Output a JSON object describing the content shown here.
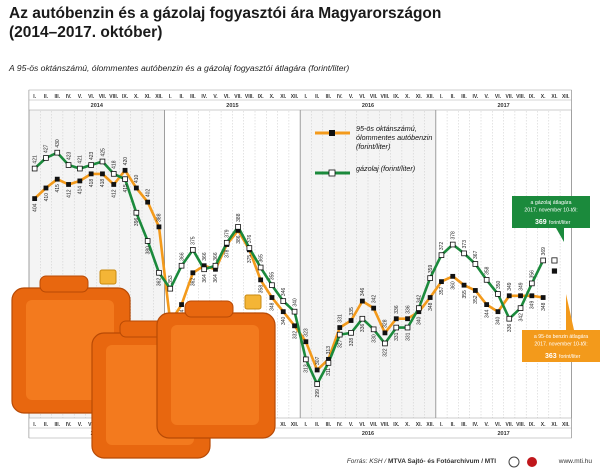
{
  "title_line1": "Az autóbenzin és a gázolaj fogyasztói ára Magyarországon",
  "title_line2": "(2014–2017. október)",
  "subtitle": "A 95-ös oktánszámú, ólommentes autóbenzin és a gázolaj fogyasztói átlagára (forint/liter)",
  "footer": {
    "source_prefix": "Forrás: KSH / ",
    "source_org": "MTVA Sajtó- és Fotóarchívum / MTI",
    "url": "www.mti.hu"
  },
  "colors": {
    "petrol": "#f39a1b",
    "diesel": "#1b8a3c",
    "bg_band": "#eeeeee"
  },
  "chart_data": {
    "type": "line",
    "title": "Az autóbenzin és a gázolaj fogyasztói ára Magyarországon (2014–2017. október)",
    "ylabel": "forint/liter",
    "ylim": [
      290,
      440
    ],
    "years": [
      "2014",
      "2015",
      "2016",
      "2017"
    ],
    "months": [
      "I.",
      "II.",
      "III.",
      "IV.",
      "V.",
      "VI.",
      "VII.",
      "VIII.",
      "IX.",
      "X.",
      "XI.",
      "XII."
    ],
    "series": [
      {
        "name": "95-ös oktánszámú, ólommentes autóbenzin (forint/liter)",
        "key": "petrol",
        "values": [
          404,
          410,
          415,
          412,
          414,
          418,
          418,
          412,
          420,
          410,
          402,
          388,
          334,
          344,
          362,
          366,
          364,
          378,
          386,
          375,
          358,
          348,
          340,
          332,
          323,
          307,
          313,
          331,
          335,
          346,
          342,
          328,
          336,
          336,
          340,
          348,
          357,
          360,
          355,
          352,
          344,
          340,
          349,
          349,
          349,
          348
        ]
      },
      {
        "name": "gázolaj (forint/liter)",
        "key": "diesel",
        "values": [
          421,
          427,
          430,
          423,
          421,
          423,
          425,
          418,
          415,
          396,
          380,
          362,
          353,
          366,
          375,
          364,
          366,
          379,
          388,
          376,
          365,
          355,
          346,
          340,
          313,
          299,
          311,
          327,
          328,
          336,
          330,
          322,
          331,
          331,
          342,
          359,
          372,
          378,
          373,
          367,
          358,
          350,
          336,
          342,
          356,
          369
        ]
      }
    ],
    "markers": {
      "2014": {
        "petrol": [
          404,
          410,
          415,
          412,
          414,
          418,
          418,
          412,
          420,
          410,
          402,
          388
        ],
        "diesel": [
          421,
          427,
          430,
          423,
          421,
          423,
          425,
          418,
          415,
          396,
          380,
          362
        ]
      },
      "2015": {
        "petrol": [
          334,
          344,
          362,
          366,
          364,
          378,
          386,
          375,
          358,
          348,
          340,
          332
        ],
        "diesel": [
          353,
          366,
          375,
          364,
          366,
          379,
          388,
          376,
          365,
          355,
          346,
          340
        ]
      }
    },
    "data_labels": [
      {
        "s": "petrol",
        "i": 0,
        "t": "404"
      },
      {
        "s": "diesel",
        "i": 0,
        "t": "421"
      },
      {
        "s": "petrol",
        "i": 1,
        "t": "410"
      },
      {
        "s": "diesel",
        "i": 1,
        "t": "427"
      },
      {
        "s": "petrol",
        "i": 2,
        "t": "415"
      },
      {
        "s": "diesel",
        "i": 2,
        "t": "430"
      },
      {
        "s": "petrol",
        "i": 3,
        "t": "412"
      },
      {
        "s": "diesel",
        "i": 3,
        "t": "423"
      },
      {
        "s": "petrol",
        "i": 4,
        "t": "414"
      },
      {
        "s": "diesel",
        "i": 4,
        "t": "421"
      },
      {
        "s": "petrol",
        "i": 5,
        "t": "418"
      },
      {
        "s": "diesel",
        "i": 5,
        "t": "423"
      },
      {
        "s": "petrol",
        "i": 6,
        "t": "418"
      },
      {
        "s": "diesel",
        "i": 6,
        "t": "425"
      },
      {
        "s": "petrol",
        "i": 7,
        "t": "412"
      },
      {
        "s": "diesel",
        "i": 7,
        "t": "418"
      },
      {
        "s": "petrol",
        "i": 8,
        "t": "420"
      },
      {
        "s": "diesel",
        "i": 8,
        "t": "415"
      },
      {
        "s": "petrol",
        "i": 9,
        "t": "410"
      },
      {
        "s": "diesel",
        "i": 9,
        "t": "396"
      },
      {
        "s": "petrol",
        "i": 10,
        "t": "402"
      },
      {
        "s": "diesel",
        "i": 10,
        "t": "380"
      },
      {
        "s": "petrol",
        "i": 11,
        "t": "388"
      },
      {
        "s": "diesel",
        "i": 11,
        "t": "362"
      },
      {
        "s": "petrol",
        "i": 12,
        "t": "334"
      },
      {
        "s": "diesel",
        "i": 12,
        "t": "353"
      },
      {
        "s": "petrol",
        "i": 13,
        "t": "344"
      },
      {
        "s": "diesel",
        "i": 13,
        "t": "366"
      },
      {
        "s": "petrol",
        "i": 14,
        "t": "362"
      },
      {
        "s": "diesel",
        "i": 14,
        "t": "375"
      },
      {
        "s": "petrol",
        "i": 15,
        "t": "366"
      },
      {
        "s": "diesel",
        "i": 15,
        "t": "364"
      },
      {
        "s": "petrol",
        "i": 16,
        "t": "364"
      },
      {
        "s": "diesel",
        "i": 16,
        "t": "366"
      },
      {
        "s": "petrol",
        "i": 17,
        "t": "378"
      },
      {
        "s": "diesel",
        "i": 17,
        "t": "379"
      },
      {
        "s": "petrol",
        "i": 18,
        "t": "386"
      },
      {
        "s": "diesel",
        "i": 18,
        "t": "388"
      },
      {
        "s": "petrol",
        "i": 19,
        "t": "375"
      },
      {
        "s": "diesel",
        "i": 19,
        "t": "376"
      },
      {
        "s": "petrol",
        "i": 20,
        "t": "358"
      },
      {
        "s": "diesel",
        "i": 20,
        "t": "365"
      },
      {
        "s": "petrol",
        "i": 21,
        "t": "348"
      },
      {
        "s": "diesel",
        "i": 21,
        "t": "355"
      },
      {
        "s": "petrol",
        "i": 22,
        "t": "340"
      },
      {
        "s": "diesel",
        "i": 22,
        "t": "346"
      },
      {
        "s": "petrol",
        "i": 23,
        "t": "332"
      },
      {
        "s": "diesel",
        "i": 23,
        "t": "340"
      },
      {
        "s": "petrol",
        "i": 24,
        "t": "323"
      },
      {
        "s": "diesel",
        "i": 24,
        "t": "313"
      },
      {
        "s": "petrol",
        "i": 25,
        "t": "307"
      },
      {
        "s": "diesel",
        "i": 25,
        "t": "299"
      },
      {
        "s": "petrol",
        "i": 26,
        "t": "313"
      },
      {
        "s": "diesel",
        "i": 26,
        "t": "311"
      },
      {
        "s": "petrol",
        "i": 27,
        "t": "331"
      },
      {
        "s": "diesel",
        "i": 27,
        "t": "327"
      },
      {
        "s": "petrol",
        "i": 28,
        "t": "335"
      },
      {
        "s": "diesel",
        "i": 28,
        "t": "328"
      },
      {
        "s": "petrol",
        "i": 29,
        "t": "346"
      },
      {
        "s": "diesel",
        "i": 29,
        "t": "336"
      },
      {
        "s": "petrol",
        "i": 30,
        "t": "342"
      },
      {
        "s": "diesel",
        "i": 30,
        "t": "330"
      },
      {
        "s": "petrol",
        "i": 31,
        "t": "328"
      },
      {
        "s": "diesel",
        "i": 31,
        "t": "322"
      },
      {
        "s": "petrol",
        "i": 32,
        "t": "336"
      },
      {
        "s": "diesel",
        "i": 32,
        "t": "331"
      },
      {
        "s": "petrol",
        "i": 33,
        "t": "336"
      },
      {
        "s": "diesel",
        "i": 33,
        "t": "331"
      },
      {
        "s": "petrol",
        "i": 34,
        "t": "340"
      },
      {
        "s": "diesel",
        "i": 34,
        "t": "342"
      },
      {
        "s": "petrol",
        "i": 35,
        "t": "348"
      },
      {
        "s": "diesel",
        "i": 35,
        "t": "359"
      },
      {
        "s": "petrol",
        "i": 36,
        "t": "357"
      },
      {
        "s": "diesel",
        "i": 36,
        "t": "372"
      },
      {
        "s": "petrol",
        "i": 37,
        "t": "360"
      },
      {
        "s": "diesel",
        "i": 37,
        "t": "378"
      },
      {
        "s": "petrol",
        "i": 38,
        "t": "355"
      },
      {
        "s": "diesel",
        "i": 38,
        "t": "373"
      },
      {
        "s": "petrol",
        "i": 39,
        "t": "352"
      },
      {
        "s": "diesel",
        "i": 39,
        "t": "367"
      },
      {
        "s": "petrol",
        "i": 40,
        "t": "344"
      },
      {
        "s": "diesel",
        "i": 40,
        "t": "358"
      },
      {
        "s": "petrol",
        "i": 41,
        "t": "340"
      },
      {
        "s": "diesel",
        "i": 41,
        "t": "350"
      },
      {
        "s": "petrol",
        "i": 42,
        "t": "349"
      },
      {
        "s": "diesel",
        "i": 42,
        "t": "336"
      },
      {
        "s": "petrol",
        "i": 43,
        "t": "349"
      },
      {
        "s": "diesel",
        "i": 43,
        "t": "342"
      },
      {
        "s": "petrol",
        "i": 44,
        "t": "349"
      },
      {
        "s": "diesel",
        "i": 44,
        "t": "356"
      },
      {
        "s": "petrol",
        "i": 45,
        "t": "348"
      },
      {
        "s": "diesel",
        "i": 45,
        "t": "369"
      }
    ],
    "legend": [
      "95-ös oktánszámú, ólommentes autóbenzin (forint/liter)",
      "gázolaj (forint/liter)"
    ],
    "legend_position": "top-right",
    "annotations": [
      {
        "key": "diesel",
        "lines": [
          "a gázolaj átlagára",
          "2017. november 10-től:"
        ],
        "value": "369",
        "unit": " forint/liter"
      },
      {
        "key": "petrol",
        "lines": [
          "a 95-ös benzin átlagára",
          "2017. november 10-től:"
        ],
        "value": "363",
        "unit": " forint/liter"
      }
    ]
  }
}
